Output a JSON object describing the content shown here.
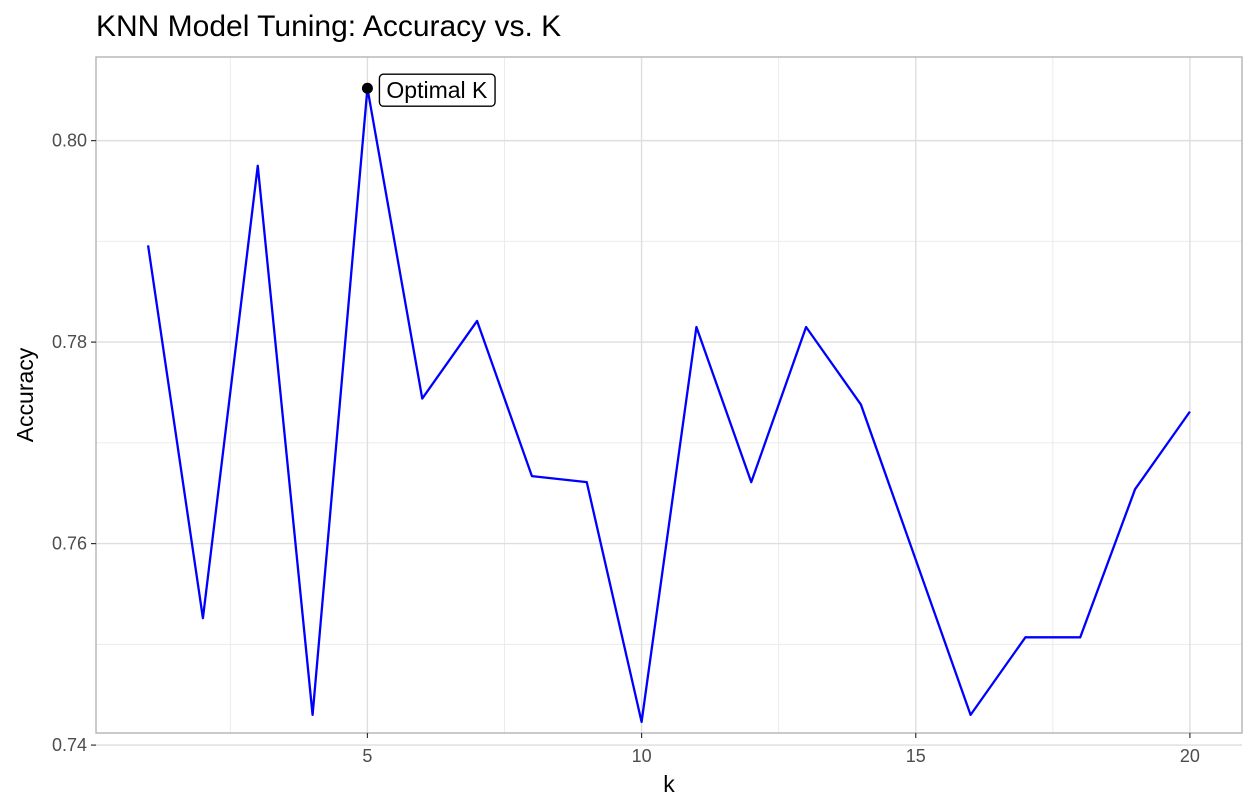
{
  "chart_data": {
    "type": "line",
    "title": "KNN Model Tuning: Accuracy vs. K",
    "xlabel": "k",
    "ylabel": "Accuracy",
    "x": [
      1,
      2,
      3,
      4,
      5,
      6,
      7,
      8,
      9,
      10,
      11,
      12,
      13,
      14,
      15,
      16,
      17,
      18,
      19,
      20
    ],
    "series": [
      {
        "values": [
          0.7896,
          0.7526,
          0.7975,
          0.743,
          0.8052,
          0.7744,
          0.7821,
          0.7667,
          0.7661,
          0.7423,
          0.7815,
          0.7661,
          0.7815,
          0.7738,
          0.7584,
          0.743,
          0.7507,
          0.7507,
          0.7654,
          0.7731
        ],
        "color": "#0000ff"
      }
    ],
    "xlim": [
      0.05,
      20.95
    ],
    "ylim": [
      0.7412,
      0.8083
    ],
    "x_ticks": [
      5,
      10,
      15,
      20
    ],
    "x_tick_labels": [
      "5",
      "10",
      "15",
      "20"
    ],
    "y_ticks": [
      0.74,
      0.76,
      0.78,
      0.8
    ],
    "y_tick_labels": [
      "0.74",
      "0.76",
      "0.78",
      "0.80"
    ],
    "grid": true,
    "annotation": {
      "x": 5,
      "y": 0.8052,
      "label": "Optimal K"
    }
  }
}
